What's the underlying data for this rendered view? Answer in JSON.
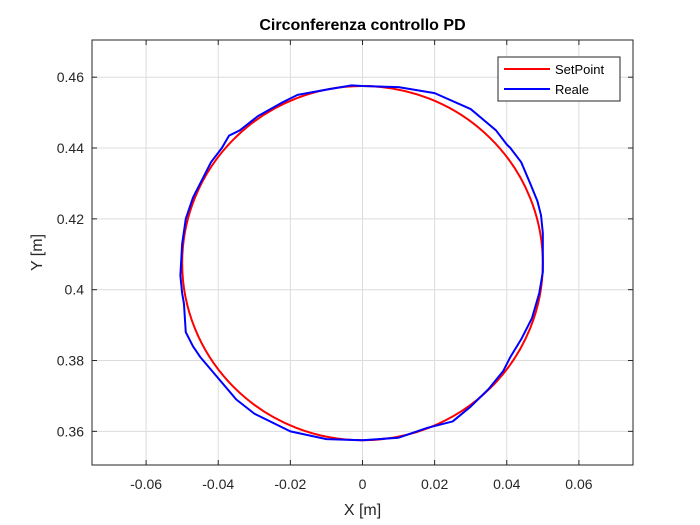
{
  "chart_data": {
    "type": "line",
    "title": "Circonferenza controllo PD",
    "xlabel": "X [m]",
    "ylabel": "Y [m]",
    "xlim": [
      -0.075,
      0.075
    ],
    "ylim": [
      0.3505,
      0.4705
    ],
    "xticks": [
      -0.06,
      -0.04,
      -0.02,
      0,
      0.02,
      0.04,
      0.06
    ],
    "xtick_labels": [
      "-0.06",
      "-0.04",
      "-0.02",
      "0",
      "0.02",
      "0.04",
      "0.06"
    ],
    "yticks": [
      0.36,
      0.38,
      0.4,
      0.42,
      0.44,
      0.46
    ],
    "ytick_labels": [
      "0.36",
      "0.38",
      "0.4",
      "0.42",
      "0.44",
      "0.46"
    ],
    "grid": true,
    "legend_position": "top-right",
    "series": [
      {
        "name": "SetPoint",
        "color": "#ff0000",
        "shape": "circle",
        "center": [
          0,
          0.4075
        ],
        "radius": 0.05
      },
      {
        "name": "Reale",
        "color": "#0000ff",
        "x": [
          0.0,
          0.01,
          0.018,
          0.025,
          0.03,
          0.035,
          0.039,
          0.041,
          0.044,
          0.047,
          0.049,
          0.05,
          0.05,
          0.0495,
          0.0485,
          0.0465,
          0.044,
          0.041,
          0.04,
          0.037,
          0.03,
          0.02,
          0.01,
          0.0,
          -0.003,
          -0.01,
          -0.018,
          -0.022,
          -0.029,
          -0.034,
          -0.037,
          -0.039,
          -0.042,
          -0.045,
          -0.047,
          -0.049,
          -0.05,
          -0.0505,
          -0.05,
          -0.0495,
          -0.049,
          -0.047,
          -0.045,
          -0.04,
          -0.035,
          -0.03,
          -0.02,
          -0.01,
          0.0
        ],
        "y": [
          0.3575,
          0.3582,
          0.361,
          0.3628,
          0.367,
          0.372,
          0.377,
          0.381,
          0.386,
          0.392,
          0.399,
          0.405,
          0.416,
          0.421,
          0.425,
          0.43,
          0.436,
          0.44,
          0.441,
          0.445,
          0.451,
          0.4555,
          0.4572,
          0.4575,
          0.4577,
          0.4565,
          0.455,
          0.453,
          0.449,
          0.445,
          0.4435,
          0.44,
          0.436,
          0.43,
          0.426,
          0.42,
          0.413,
          0.404,
          0.399,
          0.396,
          0.388,
          0.384,
          0.381,
          0.375,
          0.369,
          0.365,
          0.36,
          0.3578,
          0.3575
        ]
      }
    ]
  }
}
